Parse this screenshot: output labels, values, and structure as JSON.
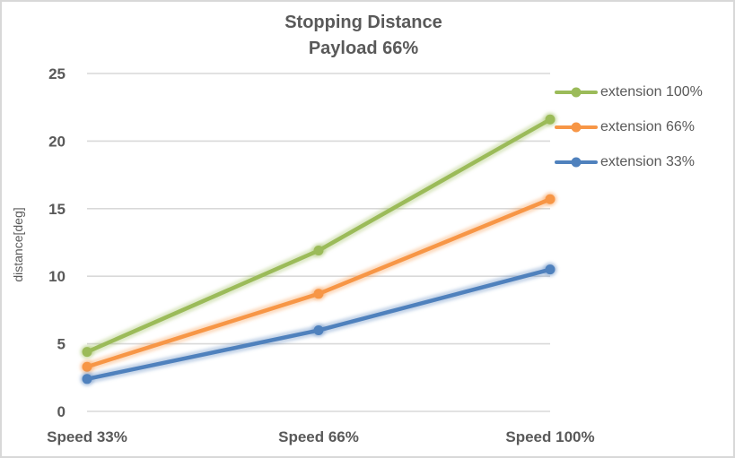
{
  "window": {
    "background": "#ffffff",
    "border_color": "#d8d8d8"
  },
  "chart_data": {
    "type": "line",
    "title": "Stopping Distance",
    "subtitle": "Payload 66%",
    "ylabel": "distance[deg]",
    "xlabel": "",
    "categories": [
      "Speed 33%",
      "Speed 66%",
      "Speed 100%"
    ],
    "series": [
      {
        "name": "extension 100%",
        "color": "#9bbb59",
        "values": [
          4.4,
          11.9,
          21.6
        ]
      },
      {
        "name": "extension 66%",
        "color": "#f79646",
        "values": [
          3.3,
          8.7,
          15.7
        ]
      },
      {
        "name": "extension 33%",
        "color": "#4f81bd",
        "values": [
          2.4,
          6.0,
          10.5
        ]
      }
    ],
    "y_ticks": [
      0,
      5,
      10,
      15,
      20,
      25
    ],
    "ylim": [
      0,
      25
    ],
    "grid": "horizontal",
    "gridline_color": "#d9d9d9",
    "text_color": "#595959",
    "legend_position": "right",
    "marker": "circle"
  }
}
